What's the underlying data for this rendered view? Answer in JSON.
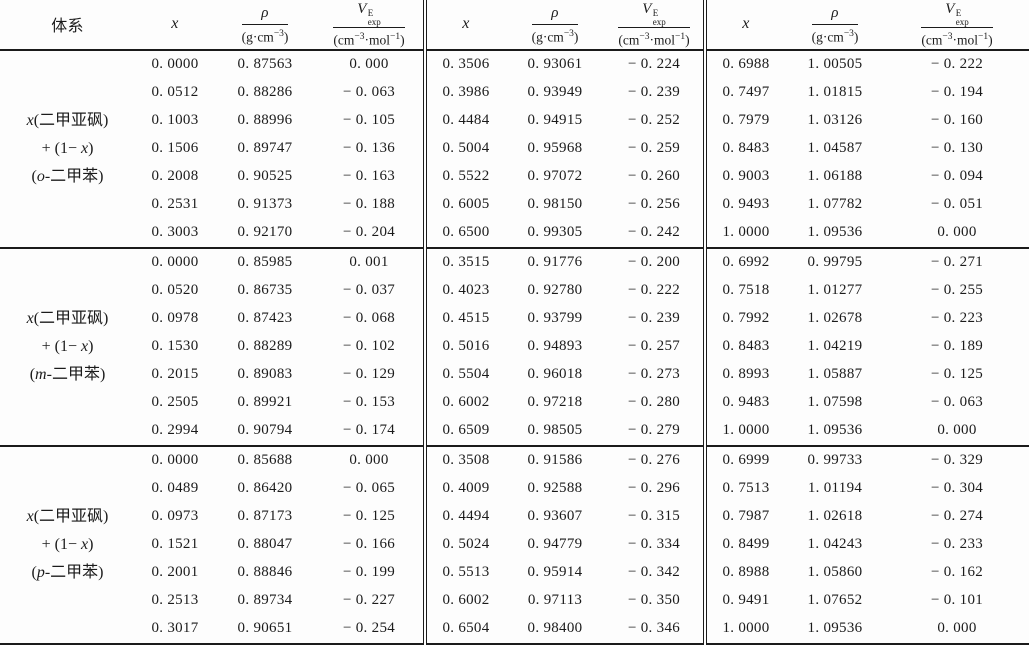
{
  "table": {
    "header": {
      "system": "体系",
      "x": "x",
      "rho": "ρ",
      "rho_den": {
        "p1": "(g·cm",
        "sup1": "−3",
        "p2": ")"
      },
      "v": "V",
      "v_sup": "E",
      "v_sub": "exp",
      "v_den": {
        "p1": "(cm",
        "sup1": "−3",
        "p2": "·mol",
        "sup2": "−1",
        "p3": ")"
      }
    }
  },
  "groups": [
    {
      "system": [
        {
          "pre": "",
          "it": "x",
          "rest": "(二甲亚砜)"
        },
        {
          "pre": "+ (1− ",
          "it": "x",
          "rest": ")"
        },
        {
          "pre": "(",
          "it": "o",
          "rest": "-二甲苯)"
        }
      ],
      "blocks": [
        {
          "rows": [
            [
              "0. 0000",
              "0. 87563",
              "0. 000"
            ],
            [
              "0. 0512",
              "0. 88286",
              "− 0. 063"
            ],
            [
              "0. 1003",
              "0. 88996",
              "− 0. 105"
            ],
            [
              "0. 1506",
              "0. 89747",
              "− 0. 136"
            ],
            [
              "0. 2008",
              "0. 90525",
              "− 0. 163"
            ],
            [
              "0. 2531",
              "0. 91373",
              "− 0. 188"
            ],
            [
              "0. 3003",
              "0. 92170",
              "− 0. 204"
            ]
          ]
        },
        {
          "rows": [
            [
              "0. 3506",
              "0. 93061",
              "− 0. 224"
            ],
            [
              "0. 3986",
              "0. 93949",
              "− 0. 239"
            ],
            [
              "0. 4484",
              "0. 94915",
              "− 0. 252"
            ],
            [
              "0. 5004",
              "0. 95968",
              "− 0. 259"
            ],
            [
              "0. 5522",
              "0. 97072",
              "− 0. 260"
            ],
            [
              "0. 6005",
              "0. 98150",
              "− 0. 256"
            ],
            [
              "0. 6500",
              "0. 99305",
              "− 0. 242"
            ]
          ]
        },
        {
          "rows": [
            [
              "0. 6988",
              "1. 00505",
              "− 0. 222"
            ],
            [
              "0. 7497",
              "1. 01815",
              "− 0. 194"
            ],
            [
              "0. 7979",
              "1. 03126",
              "− 0. 160"
            ],
            [
              "0. 8483",
              "1. 04587",
              "− 0. 130"
            ],
            [
              "0. 9003",
              "1. 06188",
              "− 0. 094"
            ],
            [
              "0. 9493",
              "1. 07782",
              "− 0. 051"
            ],
            [
              "1. 0000",
              "1. 09536",
              "0. 000"
            ]
          ]
        }
      ]
    },
    {
      "system": [
        {
          "pre": "",
          "it": "x",
          "rest": "(二甲亚砜)"
        },
        {
          "pre": "+ (1− ",
          "it": "x",
          "rest": ")"
        },
        {
          "pre": "(",
          "it": "m",
          "rest": "-二甲苯)"
        }
      ],
      "blocks": [
        {
          "rows": [
            [
              "0. 0000",
              "0. 85985",
              "0. 001"
            ],
            [
              "0. 0520",
              "0. 86735",
              "− 0. 037"
            ],
            [
              "0. 0978",
              "0. 87423",
              "− 0. 068"
            ],
            [
              "0. 1530",
              "0. 88289",
              "− 0. 102"
            ],
            [
              "0. 2015",
              "0. 89083",
              "− 0. 129"
            ],
            [
              "0. 2505",
              "0. 89921",
              "− 0. 153"
            ],
            [
              "0. 2994",
              "0. 90794",
              "− 0. 174"
            ]
          ]
        },
        {
          "rows": [
            [
              "0. 3515",
              "0. 91776",
              "− 0. 200"
            ],
            [
              "0. 4023",
              "0. 92780",
              "− 0. 222"
            ],
            [
              "0. 4515",
              "0. 93799",
              "− 0. 239"
            ],
            [
              "0. 5016",
              "0. 94893",
              "− 0. 257"
            ],
            [
              "0. 5504",
              "0. 96018",
              "− 0. 273"
            ],
            [
              "0. 6002",
              "0. 97218",
              "− 0. 280"
            ],
            [
              "0. 6509",
              "0. 98505",
              "− 0. 279"
            ]
          ]
        },
        {
          "rows": [
            [
              "0. 6992",
              "0. 99795",
              "− 0. 271"
            ],
            [
              "0. 7518",
              "1. 01277",
              "− 0. 255"
            ],
            [
              "0. 7992",
              "1. 02678",
              "− 0. 223"
            ],
            [
              "0. 8483",
              "1. 04219",
              "− 0. 189"
            ],
            [
              "0. 8993",
              "1. 05887",
              "− 0. 125"
            ],
            [
              "0. 9483",
              "1. 07598",
              "− 0. 063"
            ],
            [
              "1. 0000",
              "1. 09536",
              "0. 000"
            ]
          ]
        }
      ]
    },
    {
      "system": [
        {
          "pre": "",
          "it": "x",
          "rest": "(二甲亚砜)"
        },
        {
          "pre": "+ (1− ",
          "it": "x",
          "rest": ")"
        },
        {
          "pre": "(",
          "it": "p",
          "rest": "-二甲苯)"
        }
      ],
      "blocks": [
        {
          "rows": [
            [
              "0. 0000",
              "0. 85688",
              "0. 000"
            ],
            [
              "0. 0489",
              "0. 86420",
              "− 0. 065"
            ],
            [
              "0. 0973",
              "0. 87173",
              "− 0. 125"
            ],
            [
              "0. 1521",
              "0. 88047",
              "− 0. 166"
            ],
            [
              "0. 2001",
              "0. 88846",
              "− 0. 199"
            ],
            [
              "0. 2513",
              "0. 89734",
              "− 0. 227"
            ],
            [
              "0. 3017",
              "0. 90651",
              "− 0. 254"
            ]
          ]
        },
        {
          "rows": [
            [
              "0. 3508",
              "0. 91586",
              "− 0. 276"
            ],
            [
              "0. 4009",
              "0. 92588",
              "− 0. 296"
            ],
            [
              "0. 4494",
              "0. 93607",
              "− 0. 315"
            ],
            [
              "0. 5024",
              "0. 94779",
              "− 0. 334"
            ],
            [
              "0. 5513",
              "0. 95914",
              "− 0. 342"
            ],
            [
              "0. 6002",
              "0. 97113",
              "− 0. 350"
            ],
            [
              "0. 6504",
              "0. 98400",
              "− 0. 346"
            ]
          ]
        },
        {
          "rows": [
            [
              "0. 6999",
              "0. 99733",
              "− 0. 329"
            ],
            [
              "0. 7513",
              "1. 01194",
              "− 0. 304"
            ],
            [
              "0. 7987",
              "1. 02618",
              "− 0. 274"
            ],
            [
              "0. 8499",
              "1. 04243",
              "− 0. 233"
            ],
            [
              "0. 8988",
              "1. 05860",
              "− 0. 162"
            ],
            [
              "0. 9491",
              "1. 07652",
              "− 0. 101"
            ],
            [
              "1. 0000",
              "1. 09536",
              "0. 000"
            ]
          ]
        }
      ]
    }
  ]
}
